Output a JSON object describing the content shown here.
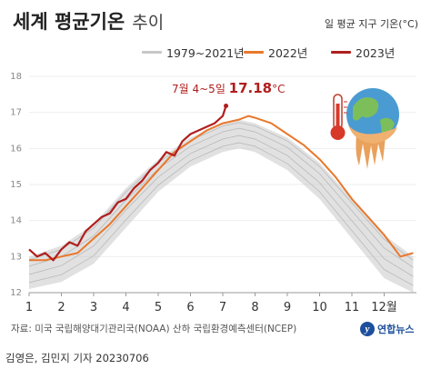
{
  "header": {
    "title": "세계 평균기온",
    "subtitle": "추이",
    "unit_note": "일 평균 지구 기온(°C)"
  },
  "colors": {
    "range_years": "#c8c8c8",
    "year_2022": "#e8782c",
    "year_2023": "#b01e1e",
    "axis_text": "#333333",
    "grid": "#eeeeee"
  },
  "legend": [
    {
      "label": "1979~2021년",
      "color": "#c8c8c8"
    },
    {
      "label": "2022년",
      "color": "#e8782c"
    },
    {
      "label": "2023년",
      "color": "#b01e1e"
    }
  ],
  "annotation": {
    "date_text": "7월 4~5일",
    "value_text": "17.18",
    "unit_text": "°C"
  },
  "chart_data": {
    "type": "line",
    "title": "세계 평균기온 추이",
    "ylabel": "일 평균 지구 기온(°C)",
    "ylim": [
      12,
      18
    ],
    "yticks": [
      12,
      13,
      14,
      15,
      16,
      17,
      18
    ],
    "xlim": [
      1,
      13
    ],
    "x_ticks": [
      {
        "value": 1,
        "label": "1"
      },
      {
        "value": 2,
        "label": "2"
      },
      {
        "value": 3,
        "label": "3"
      },
      {
        "value": 4,
        "label": "4"
      },
      {
        "value": 5,
        "label": "5"
      },
      {
        "value": 6,
        "label": "6"
      },
      {
        "value": 7,
        "label": "7"
      },
      {
        "value": 8,
        "label": "8"
      },
      {
        "value": 9,
        "label": "9"
      },
      {
        "value": 10,
        "label": "10"
      },
      {
        "value": 11,
        "label": "11"
      },
      {
        "value": 12,
        "label": "12월"
      }
    ],
    "grid": true,
    "series": [
      {
        "name": "1979~2021년",
        "kind": "band",
        "x": [
          1.0,
          2.0,
          3.0,
          4.0,
          5.0,
          6.0,
          7.0,
          7.5,
          8.0,
          9.0,
          10.0,
          11.0,
          12.0,
          12.9
        ],
        "upper": [
          13.0,
          13.3,
          13.9,
          14.9,
          15.7,
          16.3,
          16.7,
          16.8,
          16.7,
          16.3,
          15.6,
          14.6,
          13.6,
          13.0
        ],
        "lower": [
          12.1,
          12.3,
          12.8,
          13.8,
          14.8,
          15.5,
          15.9,
          16.0,
          15.9,
          15.4,
          14.6,
          13.5,
          12.4,
          12.0
        ]
      },
      {
        "name": "2022년",
        "x": [
          1.0,
          1.5,
          2.0,
          2.5,
          3.0,
          3.5,
          4.0,
          4.5,
          5.0,
          5.5,
          6.0,
          6.5,
          7.0,
          7.5,
          7.8,
          8.0,
          8.5,
          9.0,
          9.5,
          10.0,
          10.5,
          11.0,
          11.5,
          12.0,
          12.5,
          12.9
        ],
        "values": [
          12.9,
          12.9,
          13.0,
          13.1,
          13.5,
          13.9,
          14.4,
          14.9,
          15.4,
          15.9,
          16.2,
          16.5,
          16.7,
          16.8,
          16.9,
          16.85,
          16.7,
          16.4,
          16.1,
          15.7,
          15.2,
          14.6,
          14.1,
          13.6,
          13.0,
          13.1
        ]
      },
      {
        "name": "2023년",
        "x": [
          1.0,
          1.25,
          1.5,
          1.75,
          2.0,
          2.25,
          2.5,
          2.75,
          3.0,
          3.25,
          3.5,
          3.75,
          4.0,
          4.25,
          4.5,
          4.75,
          5.0,
          5.25,
          5.5,
          5.75,
          6.0,
          6.25,
          6.5,
          6.75,
          7.0,
          7.1
        ],
        "values": [
          13.2,
          13.0,
          13.1,
          12.9,
          13.2,
          13.4,
          13.3,
          13.7,
          13.9,
          14.1,
          14.2,
          14.5,
          14.6,
          14.9,
          15.1,
          15.4,
          15.6,
          15.9,
          15.8,
          16.2,
          16.4,
          16.5,
          16.6,
          16.7,
          16.9,
          17.18
        ]
      }
    ]
  },
  "footer": {
    "source": "자료: 미국 국립해양대기관리국(NOAA) 산하 국립환경예측센터(NCEP)",
    "credit": "김영은, 김민지 기자 20230706",
    "logo_text": "연합뉴스"
  }
}
